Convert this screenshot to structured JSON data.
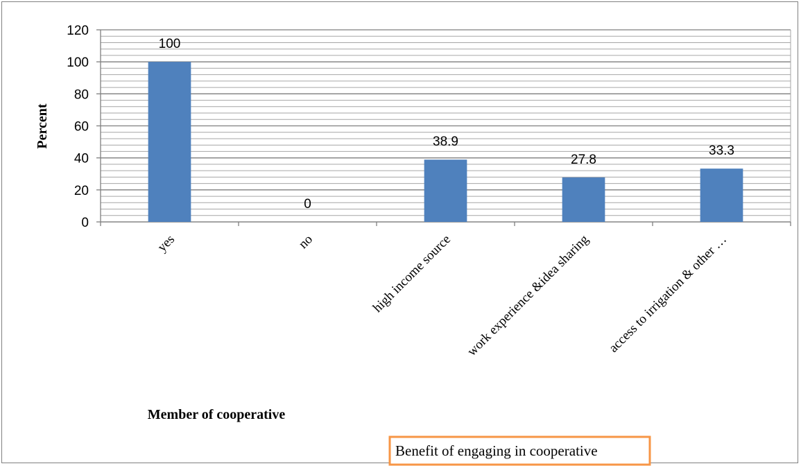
{
  "chart_data": {
    "type": "bar",
    "categories": [
      "yes",
      "no",
      "high income source",
      "work experience &idea sharing",
      "access to irrigation & other …"
    ],
    "values": [
      100,
      0,
      38.9,
      27.8,
      33.3
    ],
    "data_labels": [
      "100",
      "0",
      "38.9",
      "27.8",
      "33.3"
    ],
    "title": "",
    "ylabel": "Percent",
    "xlabel": "Member of cooperative",
    "annotation": "Benefit of engaging in cooperative",
    "ylim": [
      0,
      120
    ],
    "yticks": [
      0,
      20,
      40,
      60,
      80,
      100,
      120
    ],
    "minor_gridline_step": 4,
    "grid": true,
    "legend": "none",
    "bar_color": "#4f81bd",
    "annotation_border_color": "#f79646"
  }
}
